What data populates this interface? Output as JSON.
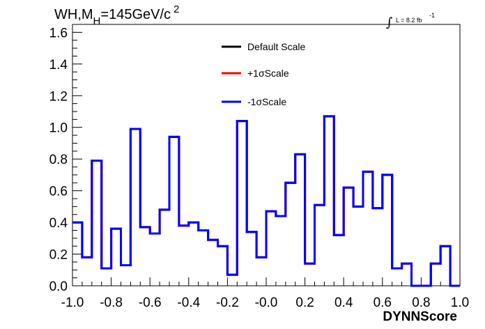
{
  "chart_data": {
    "type": "line",
    "title": {
      "prefix": "WH,M",
      "subscript": "H",
      "main": "=145GeV/c",
      "superscript": "2"
    },
    "lumi": {
      "integral": "∫",
      "text": "L = 8.2 fb",
      "superscript": "-1"
    },
    "xlabel": "DYNNScore",
    "ylabel": "",
    "xlim": [
      -1.0,
      1.0
    ],
    "ylim": [
      0.0,
      1.65
    ],
    "x_ticks": [
      "-1.0",
      "-0.8",
      "-0.6",
      "-0.4",
      "-0.2",
      "-0.0",
      "0.2",
      "0.4",
      "0.6",
      "0.8",
      "1.0"
    ],
    "y_ticks": [
      "0.0",
      "0.2",
      "0.4",
      "0.6",
      "0.8",
      "1.0",
      "1.2",
      "1.4",
      "1.6"
    ],
    "grid": false,
    "legend_position": "top-center",
    "bin_edges": [
      -1.0,
      -0.95,
      -0.9,
      -0.85,
      -0.8,
      -0.75,
      -0.7,
      -0.65,
      -0.6,
      -0.55,
      -0.5,
      -0.45,
      -0.4,
      -0.35,
      -0.3,
      -0.25,
      -0.2,
      -0.15,
      -0.1,
      -0.05,
      0.0,
      0.05,
      0.1,
      0.15,
      0.2,
      0.25,
      0.3,
      0.35,
      0.4,
      0.45,
      0.5,
      0.55,
      0.6,
      0.65,
      0.7,
      0.75,
      0.8,
      0.85,
      0.9,
      0.95,
      1.0
    ],
    "series": [
      {
        "name": "Default Scale",
        "color": "#000000",
        "values": [
          0.4,
          0.18,
          0.79,
          0.11,
          0.36,
          0.13,
          0.99,
          0.37,
          0.33,
          0.48,
          0.94,
          0.38,
          0.4,
          0.35,
          0.29,
          0.25,
          0.07,
          1.04,
          0.34,
          0.18,
          0.47,
          0.44,
          0.65,
          0.83,
          0.14,
          0.51,
          1.07,
          0.32,
          0.62,
          0.5,
          0.72,
          0.49,
          0.7,
          0.11,
          0.14,
          0.0,
          0.0,
          0.14,
          0.25,
          0.0
        ]
      },
      {
        "name": "+1σScale",
        "color": "#ff0000",
        "values": [
          0.4,
          0.18,
          0.79,
          0.11,
          0.36,
          0.13,
          0.99,
          0.37,
          0.33,
          0.48,
          0.94,
          0.38,
          0.4,
          0.35,
          0.29,
          0.25,
          0.07,
          1.04,
          0.34,
          0.18,
          0.47,
          0.44,
          0.65,
          0.83,
          0.14,
          0.51,
          1.07,
          0.32,
          0.62,
          0.5,
          0.72,
          0.49,
          0.7,
          0.11,
          0.14,
          0.0,
          0.0,
          0.14,
          0.25,
          0.0
        ]
      },
      {
        "name": "-1σScale",
        "color": "#0000ff",
        "values": [
          0.4,
          0.18,
          0.79,
          0.11,
          0.36,
          0.13,
          0.99,
          0.37,
          0.33,
          0.48,
          0.94,
          0.38,
          0.4,
          0.35,
          0.29,
          0.25,
          0.07,
          1.04,
          0.34,
          0.18,
          0.47,
          0.44,
          0.65,
          0.83,
          0.14,
          0.51,
          1.07,
          0.32,
          0.62,
          0.5,
          0.72,
          0.49,
          0.7,
          0.11,
          0.14,
          0.0,
          0.0,
          0.14,
          0.25,
          0.0
        ]
      }
    ]
  }
}
